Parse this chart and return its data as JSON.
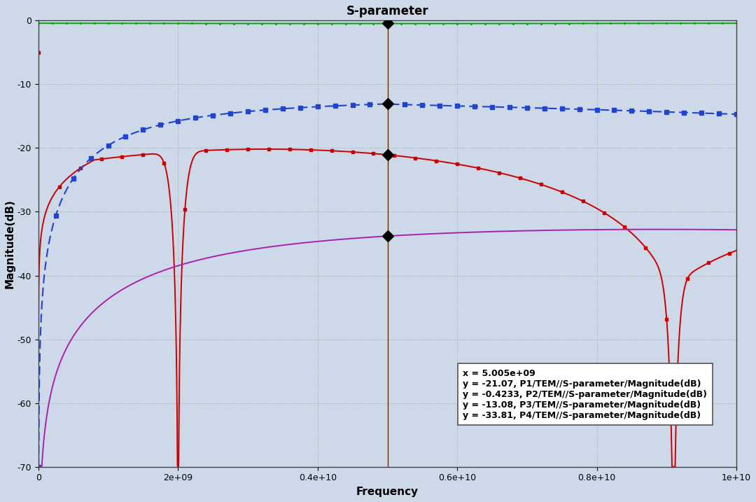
{
  "title": "S-parameter",
  "xlabel": "Frequency",
  "ylabel": "Magnitude(dB)",
  "xlim": [
    0,
    10000000000.0
  ],
  "ylim": [
    -70,
    0
  ],
  "xticks": [
    0,
    2000000000.0,
    4000000000.0,
    6000000000.0,
    8000000000.0,
    10000000000.0
  ],
  "yticks": [
    0,
    -10,
    -20,
    -30,
    -40,
    -50,
    -60,
    -70
  ],
  "cursor_x": 5005000000.0,
  "cursor_y_p1": -21.07,
  "cursor_y_p2": -0.4233,
  "cursor_y_p3": -13.08,
  "cursor_y_p4": -33.81,
  "bg_color": "#cdd8e8",
  "p1_color": "#cc0000",
  "p2_color": "#00aa00",
  "p3_color": "#2244cc",
  "p4_color": "#aa22aa",
  "annotation_text": "x = 5.005e+09\ny = -21.07, P1/TEM//S-parameter/Magnitude(dB)\ny = -0.4233, P2/TEM//S-parameter/Magnitude(dB)\ny = -13.08, P3/TEM//S-parameter/Magnitude(dB)\ny = -33.81, P4/TEM//S-parameter/Magnitude(dB)"
}
